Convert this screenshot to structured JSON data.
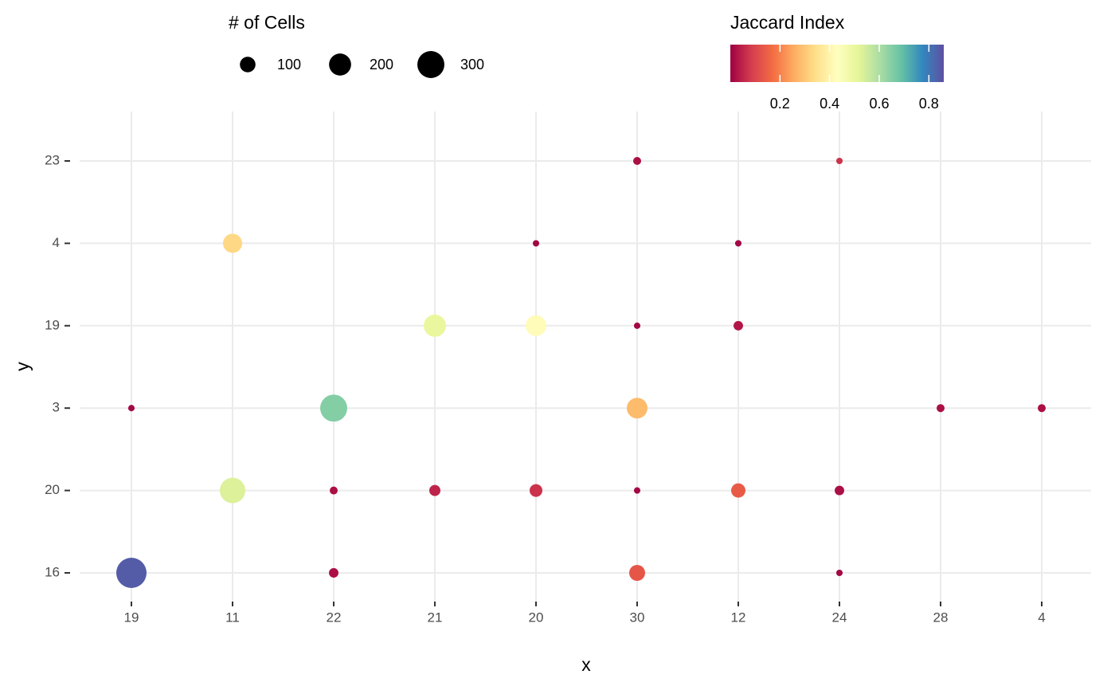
{
  "chart_data": {
    "type": "bubble",
    "x_label": "x",
    "y_label": "y",
    "categories": [
      "19",
      "11",
      "22",
      "21",
      "20",
      "30",
      "12",
      "24",
      "28",
      "4"
    ],
    "ycategories": [
      "16",
      "20",
      "3",
      "19",
      "4",
      "23"
    ],
    "points": {
      "x": [
        "30",
        "24",
        "11",
        "20",
        "12",
        "21",
        "20",
        "30",
        "12",
        "19",
        "22",
        "30",
        "28",
        "4",
        "11",
        "22",
        "21",
        "20",
        "30",
        "12",
        "24",
        "19",
        "22",
        "30",
        "24"
      ],
      "y": [
        "23",
        "23",
        "4",
        "4",
        "4",
        "19",
        "19",
        "19",
        "19",
        "3",
        "3",
        "3",
        "3",
        "3",
        "20",
        "20",
        "20",
        "20",
        "20",
        "20",
        "20",
        "16",
        "16",
        "16",
        "16"
      ],
      "size": [
        26,
        17,
        150,
        17,
        17,
        204,
        176,
        17,
        37,
        17,
        300,
        176,
        26,
        26,
        267,
        26,
        51,
        67,
        17,
        84,
        37,
        376,
        37,
        104,
        17
      ],
      "jaccard": [
        0.02,
        0.07,
        0.33,
        0.01,
        0.01,
        0.5,
        0.42,
        0.01,
        0.03,
        0.01,
        0.65,
        0.28,
        0.02,
        0.02,
        0.53,
        0.02,
        0.05,
        0.07,
        0.01,
        0.14,
        0.02,
        0.84,
        0.02,
        0.13,
        0.01
      ]
    },
    "grid": true,
    "size_legend": {
      "title": "# of Cells",
      "values": [
        100,
        200,
        300
      ]
    },
    "color_legend": {
      "title": "Jaccard Index",
      "lim": [
        0,
        0.86
      ],
      "ticks": [
        0.2,
        0.4,
        0.6,
        0.8
      ],
      "palette": [
        "#9e0142",
        "#d53e4f",
        "#f46d43",
        "#fdae61",
        "#fee08b",
        "#ffffbf",
        "#e6f598",
        "#abdda4",
        "#66c2a5",
        "#3288bd",
        "#5e4fa2"
      ]
    }
  }
}
